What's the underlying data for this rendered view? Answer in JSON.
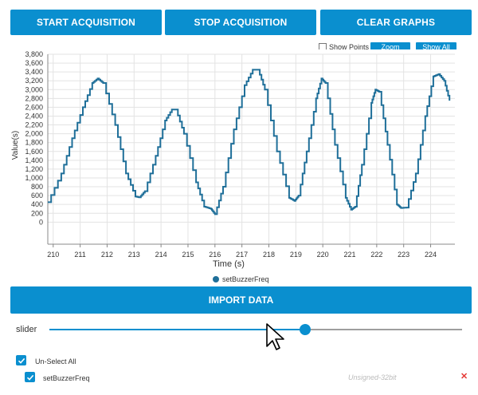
{
  "toolbar": {
    "start_label": "START ACQUISITION",
    "stop_label": "STOP ACQUISITION",
    "clear_label": "CLEAR GRAPHS"
  },
  "graph_options": {
    "show_points_label": "Show Points",
    "show_points_checked": false,
    "zoom_label": "Zoom",
    "show_all_label": "Show All"
  },
  "chart_data": {
    "type": "line",
    "xlabel": "Time (s)",
    "ylabel": "Value(s)",
    "xlim": [
      209.8,
      224.9
    ],
    "ylim": [
      -500,
      3800
    ],
    "xticks": [
      210,
      211,
      212,
      213,
      214,
      215,
      216,
      217,
      218,
      219,
      220,
      221,
      222,
      223,
      224
    ],
    "yticks": [
      0,
      200,
      400,
      600,
      800,
      1000,
      1200,
      1400,
      1600,
      1800,
      2000,
      2200,
      2400,
      2600,
      2800,
      3000,
      3200,
      3400,
      3600,
      3800
    ],
    "ytick_labels": [
      "0",
      "200",
      "400",
      "600",
      "800",
      "1,000",
      "1,200",
      "1,400",
      "1,600",
      "1,800",
      "2,000",
      "2,200",
      "2,400",
      "2,600",
      "2,800",
      "3,000",
      "3,200",
      "3,400",
      "3,600",
      "3,800"
    ],
    "grid": true,
    "legend": "bottom-center",
    "color": "#1f6f99",
    "series": [
      {
        "name": "setBuzzerFreq",
        "x": [
          209.8,
          210.3,
          210.7,
          211.1,
          211.45,
          211.65,
          211.85,
          212.3,
          212.7,
          213.05,
          213.2,
          213.4,
          213.8,
          214.15,
          214.4,
          214.55,
          214.85,
          215.3,
          215.6,
          215.85,
          216.0,
          216.3,
          216.7,
          217.1,
          217.4,
          217.6,
          217.85,
          218.3,
          218.75,
          218.95,
          219.1,
          219.4,
          219.75,
          219.95,
          220.1,
          220.45,
          220.85,
          221.05,
          221.2,
          221.45,
          221.8,
          221.95,
          222.1,
          222.4,
          222.75,
          222.9,
          223.1,
          223.45,
          223.8,
          224.1,
          224.3,
          224.5,
          224.7
        ],
        "y": [
          450,
          1100,
          1900,
          2600,
          3150,
          3250,
          3150,
          2200,
          1100,
          580,
          560,
          700,
          1500,
          2300,
          2550,
          2550,
          2000,
          900,
          350,
          300,
          180,
          800,
          2100,
          3100,
          3450,
          3450,
          3000,
          1600,
          550,
          480,
          600,
          1600,
          2800,
          3250,
          3150,
          1750,
          550,
          280,
          350,
          1300,
          2700,
          3000,
          2950,
          1750,
          400,
          320,
          330,
          1100,
          2400,
          3300,
          3350,
          3200,
          2750
        ]
      }
    ]
  },
  "import_label": "IMPORT DATA",
  "slider": {
    "label": "slider",
    "value": 0.62
  },
  "selection": {
    "unselect_label": "Un-Select All",
    "items": [
      {
        "name": "setBuzzerFreq",
        "type": "Unsigned-32bit",
        "remove": "✕"
      }
    ]
  },
  "icons": {
    "check": "check-icon",
    "remove": "close-icon",
    "cursor": "mouse-pointer-icon"
  },
  "colors": {
    "accent": "#0a8fcf",
    "line": "#1f6f99",
    "remove": "#e53935"
  }
}
